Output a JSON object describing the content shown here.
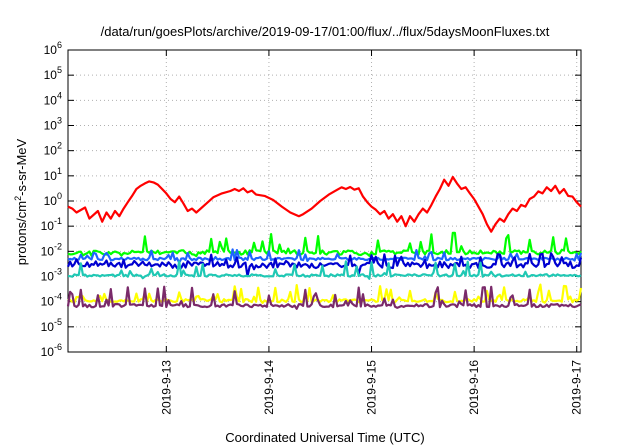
{
  "chart_data": {
    "type": "line",
    "title": "/data/run/goesPlots/archive/2019-09-17/01:00/flux/../flux/5daysMoonFluxes.txt",
    "xlabel": "Coordinated Universal Time (UTC)",
    "ylabel_prefix": "protons/cm",
    "ylabel_sup": "2",
    "ylabel_suffix": "-s-sr-MeV",
    "yscale": "log",
    "ylim": [
      1e-06,
      1000000.0
    ],
    "y_ticks": [
      {
        "value": 1e-06,
        "base": "10",
        "exp": "-6"
      },
      {
        "value": 1e-05,
        "base": "10",
        "exp": "-5"
      },
      {
        "value": 0.0001,
        "base": "10",
        "exp": "-4"
      },
      {
        "value": 0.001,
        "base": "10",
        "exp": "-3"
      },
      {
        "value": 0.01,
        "base": "10",
        "exp": "-2"
      },
      {
        "value": 0.1,
        "base": "10",
        "exp": "-1"
      },
      {
        "value": 1,
        "base": "10",
        "exp": "0"
      },
      {
        "value": 10,
        "base": "10",
        "exp": "1"
      },
      {
        "value": 100,
        "base": "10",
        "exp": "2"
      },
      {
        "value": 1000,
        "base": "10",
        "exp": "3"
      },
      {
        "value": 10000,
        "base": "10",
        "exp": "4"
      },
      {
        "value": 100000,
        "base": "10",
        "exp": "5"
      },
      {
        "value": 1000000,
        "base": "10",
        "exp": "6"
      }
    ],
    "x_start": "2019-09-12T01:00",
    "x_end": "2019-09-17T01:00",
    "x_ticks": [
      {
        "value": "2019-09-13T00:00",
        "label": "2019-9-13"
      },
      {
        "value": "2019-09-14T00:00",
        "label": "2019-9-14"
      },
      {
        "value": "2019-09-15T00:00",
        "label": "2019-9-15"
      },
      {
        "value": "2019-09-16T00:00",
        "label": "2019-9-16"
      },
      {
        "value": "2019-09-17T00:00",
        "label": "2019-9-17"
      }
    ],
    "grid": true,
    "legend": "none",
    "series": [
      {
        "color": "#ff0000",
        "points": [
          [
            "2019-09-12T01:00",
            0.6
          ],
          [
            "2019-09-12T02:00",
            0.5
          ],
          [
            "2019-09-12T03:00",
            0.35
          ],
          [
            "2019-09-12T05:00",
            0.55
          ],
          [
            "2019-09-12T06:00",
            0.2
          ],
          [
            "2019-09-12T08:00",
            0.4
          ],
          [
            "2019-09-12T09:00",
            0.15
          ],
          [
            "2019-09-12T10:00",
            0.35
          ],
          [
            "2019-09-12T11:00",
            0.2
          ],
          [
            "2019-09-12T12:00",
            0.4
          ],
          [
            "2019-09-12T13:00",
            0.25
          ],
          [
            "2019-09-12T14:00",
            0.5
          ],
          [
            "2019-09-12T15:00",
            0.9
          ],
          [
            "2019-09-12T16:00",
            1.6
          ],
          [
            "2019-09-12T17:00",
            3
          ],
          [
            "2019-09-12T18:00",
            4
          ],
          [
            "2019-09-12T19:00",
            5
          ],
          [
            "2019-09-12T20:00",
            6
          ],
          [
            "2019-09-12T21:00",
            5.5
          ],
          [
            "2019-09-12T22:00",
            4.5
          ],
          [
            "2019-09-12T23:00",
            3
          ],
          [
            "2019-09-13T00:00",
            2
          ],
          [
            "2019-09-13T01:00",
            1.2
          ],
          [
            "2019-09-13T02:00",
            0.9
          ],
          [
            "2019-09-13T03:00",
            1.5
          ],
          [
            "2019-09-13T04:00",
            0.8
          ],
          [
            "2019-09-13T05:00",
            0.4
          ],
          [
            "2019-09-13T06:00",
            0.5
          ],
          [
            "2019-09-13T07:00",
            0.35
          ],
          [
            "2019-09-13T09:00",
            0.7
          ],
          [
            "2019-09-13T11:00",
            1.4
          ],
          [
            "2019-09-13T13:00",
            2
          ],
          [
            "2019-09-13T15:00",
            2.5
          ],
          [
            "2019-09-13T16:00",
            3
          ],
          [
            "2019-09-13T17:00",
            2.5
          ],
          [
            "2019-09-13T18:00",
            3.2
          ],
          [
            "2019-09-13T19:00",
            2.2
          ],
          [
            "2019-09-13T20:00",
            2.6
          ],
          [
            "2019-09-13T21:00",
            1.8
          ],
          [
            "2019-09-13T23:00",
            1.6
          ],
          [
            "2019-09-14T01:00",
            1.1
          ],
          [
            "2019-09-14T03:00",
            0.6
          ],
          [
            "2019-09-14T05:00",
            0.35
          ],
          [
            "2019-09-14T07:00",
            0.25
          ],
          [
            "2019-09-14T08:00",
            0.3
          ],
          [
            "2019-09-14T10:00",
            0.5
          ],
          [
            "2019-09-14T12:00",
            1
          ],
          [
            "2019-09-14T14:00",
            1.8
          ],
          [
            "2019-09-14T16:00",
            2.8
          ],
          [
            "2019-09-14T17:00",
            3.5
          ],
          [
            "2019-09-14T18:00",
            3
          ],
          [
            "2019-09-14T19:00",
            3.6
          ],
          [
            "2019-09-14T20:00",
            2.8
          ],
          [
            "2019-09-14T21:00",
            3.2
          ],
          [
            "2019-09-14T22:00",
            1.5
          ],
          [
            "2019-09-14T23:00",
            0.9
          ],
          [
            "2019-09-15T00:00",
            0.6
          ],
          [
            "2019-09-15T01:00",
            0.45
          ],
          [
            "2019-09-15T02:00",
            0.3
          ],
          [
            "2019-09-15T03:00",
            0.4
          ],
          [
            "2019-09-15T04:00",
            0.2
          ],
          [
            "2019-09-15T05:00",
            0.3
          ],
          [
            "2019-09-15T06:00",
            0.15
          ],
          [
            "2019-09-15T07:00",
            0.25
          ],
          [
            "2019-09-15T08:00",
            0.1
          ],
          [
            "2019-09-15T09:00",
            0.25
          ],
          [
            "2019-09-15T10:00",
            0.15
          ],
          [
            "2019-09-15T11:00",
            0.3
          ],
          [
            "2019-09-15T12:00",
            0.5
          ],
          [
            "2019-09-15T13:00",
            0.35
          ],
          [
            "2019-09-15T14:00",
            0.7
          ],
          [
            "2019-09-15T15:00",
            1.5
          ],
          [
            "2019-09-15T16:00",
            3
          ],
          [
            "2019-09-15T17:00",
            7
          ],
          [
            "2019-09-15T18:00",
            4
          ],
          [
            "2019-09-15T19:00",
            9
          ],
          [
            "2019-09-15T20:00",
            5
          ],
          [
            "2019-09-15T21:00",
            3
          ],
          [
            "2019-09-15T22:00",
            3.5
          ],
          [
            "2019-09-15T23:00",
            2
          ],
          [
            "2019-09-16T00:00",
            1.2
          ],
          [
            "2019-09-16T01:00",
            0.6
          ],
          [
            "2019-09-16T02:00",
            0.3
          ],
          [
            "2019-09-16T03:00",
            0.12
          ],
          [
            "2019-09-16T04:00",
            0.06
          ],
          [
            "2019-09-16T05:00",
            0.12
          ],
          [
            "2019-09-16T06:00",
            0.2
          ],
          [
            "2019-09-16T07:00",
            0.15
          ],
          [
            "2019-09-16T08:00",
            0.3
          ],
          [
            "2019-09-16T09:00",
            0.5
          ],
          [
            "2019-09-16T10:00",
            0.4
          ],
          [
            "2019-09-16T11:00",
            0.7
          ],
          [
            "2019-09-16T12:00",
            0.6
          ],
          [
            "2019-09-16T13:00",
            1.2
          ],
          [
            "2019-09-16T14:00",
            1.5
          ],
          [
            "2019-09-16T15:00",
            2.4
          ],
          [
            "2019-09-16T16:00",
            2
          ],
          [
            "2019-09-16T17:00",
            3.5
          ],
          [
            "2019-09-16T18:00",
            2.5
          ],
          [
            "2019-09-16T19:00",
            4
          ],
          [
            "2019-09-16T20:00",
            2
          ],
          [
            "2019-09-16T21:00",
            3
          ],
          [
            "2019-09-16T22:00",
            1.6
          ],
          [
            "2019-09-16T23:00",
            1.5
          ],
          [
            "2019-09-17T00:00",
            0.9
          ],
          [
            "2019-09-17T01:00",
            0.6
          ]
        ]
      },
      {
        "color": "#00ff00",
        "baseline": 0.009,
        "min": 0.006,
        "max": 0.06,
        "spikes": 30,
        "noise": 0.35,
        "seed": 11,
        "x_start": "2019-09-12T01:00",
        "x_end": "2019-09-17T01:00"
      },
      {
        "color": "#1e64ff",
        "baseline": 0.005,
        "min": 0.0035,
        "max": 0.012,
        "spikes": 22,
        "noise": 0.2,
        "seed": 23,
        "x_start": "2019-09-12T01:00",
        "x_end": "2019-09-17T01:00"
      },
      {
        "color": "#0000d0",
        "baseline": 0.0028,
        "min": 0.0008,
        "max": 0.009,
        "spikes": 40,
        "noise": 0.45,
        "seed": 37,
        "x_start": "2019-09-12T01:00",
        "x_end": "2019-09-17T01:00"
      },
      {
        "color": "#20c8b4",
        "baseline": 0.0011,
        "min": 0.0008,
        "max": 0.004,
        "spikes": 25,
        "noise": 0.2,
        "seed": 41,
        "x_start": "2019-09-12T01:00",
        "x_end": "2019-09-17T01:00"
      },
      {
        "color": "#ffff00",
        "baseline": 0.00011,
        "min": 8e-05,
        "max": 0.0005,
        "spikes": 40,
        "noise": 0.25,
        "seed": 53,
        "x_start": "2019-09-12T01:00",
        "x_end": "2019-09-17T01:00"
      },
      {
        "color": "#7a2a6a",
        "baseline": 7e-05,
        "min": 5e-05,
        "max": 0.0004,
        "spikes": 40,
        "noise": 0.25,
        "seed": 67,
        "x_start": "2019-09-12T01:00",
        "x_end": "2019-09-17T01:00"
      }
    ]
  }
}
